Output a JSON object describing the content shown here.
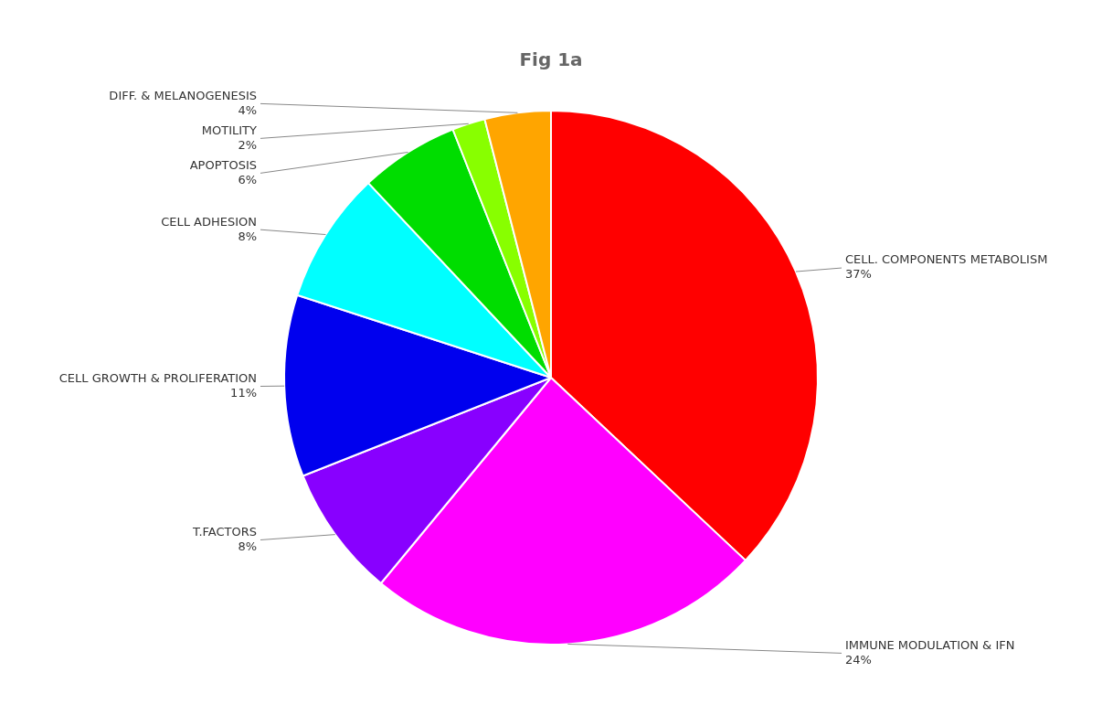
{
  "chart_data": {
    "type": "pie",
    "title": "Fig 1a",
    "categories": [
      "CELL. COMPONENTS METABOLISM",
      "IMMUNE MODULATION & IFN",
      "T.FACTORS",
      "CELL GROWTH & PROLIFERATION",
      "CELL ADHESION",
      "APOPTOSIS",
      "MOTILITY",
      "DIFF. & MELANOGENESIS"
    ],
    "values": [
      37,
      24,
      8,
      11,
      8,
      6,
      2,
      4
    ],
    "value_labels": [
      "37%",
      "24%",
      "8%",
      "11%",
      "8%",
      "6%",
      "2%",
      "4%"
    ],
    "colors": [
      "#FF0000",
      "#FF00FF",
      "#8800FF",
      "#0000EE",
      "#00FFFF",
      "#00DD00",
      "#88FF00",
      "#FFA500"
    ],
    "data_labels": true
  }
}
